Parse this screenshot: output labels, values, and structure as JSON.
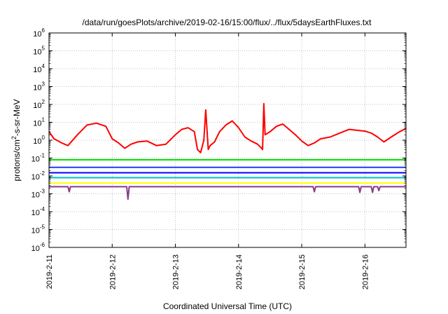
{
  "chart_data": {
    "type": "line",
    "title": "/data/run/goesPlots/archive/2019-02-16/15:00/flux/../flux/5daysEarthFluxes.txt",
    "xlabel": "Coordinated Universal Time (UTC)",
    "ylabel": "protons/cm²-s-sr-MeV",
    "ylabel_parts": [
      "protons/cm",
      "2",
      "-s-sr-MeV"
    ],
    "y_scale": "log",
    "ylim": [
      1e-06,
      1000000.0
    ],
    "xlim": [
      0,
      5.65
    ],
    "grid": true,
    "x_ticks": [
      {
        "x": 0,
        "label": "2019-2-11"
      },
      {
        "x": 1,
        "label": "2019-2-12"
      },
      {
        "x": 2,
        "label": "2019-2-13"
      },
      {
        "x": 3,
        "label": "2019-2-14"
      },
      {
        "x": 4,
        "label": "2019-2-15"
      },
      {
        "x": 5,
        "label": "2019-2-16"
      }
    ],
    "y_ticks": [
      {
        "exp": 6,
        "base": "10",
        "power": "6"
      },
      {
        "exp": 5,
        "base": "10",
        "power": "5"
      },
      {
        "exp": 4,
        "base": "10",
        "power": "4"
      },
      {
        "exp": 3,
        "base": "10",
        "power": "3"
      },
      {
        "exp": 2,
        "base": "10",
        "power": "2"
      },
      {
        "exp": 1,
        "base": "10",
        "power": "1"
      },
      {
        "exp": 0,
        "base": "10",
        "power": "0"
      },
      {
        "exp": -1,
        "base": "10",
        "power": "-1"
      },
      {
        "exp": -2,
        "base": "10",
        "power": "-2"
      },
      {
        "exp": -3,
        "base": "10",
        "power": "-3"
      },
      {
        "exp": -4,
        "base": "10",
        "power": "-4"
      },
      {
        "exp": -5,
        "base": "10",
        "power": "-5"
      },
      {
        "exp": -6,
        "base": "10",
        "power": "-6"
      }
    ],
    "series": [
      {
        "color": "#ffff00",
        "x": [
          0,
          1,
          2,
          3,
          4,
          5,
          5.65
        ],
        "y": [
          0.004,
          0.004,
          0.004,
          0.004,
          0.004,
          0.004,
          0.004
        ]
      },
      {
        "color": "#8b3a8b",
        "x": [
          0,
          0.3,
          0.32,
          0.34,
          1,
          1.23,
          1.25,
          1.27,
          2,
          3,
          4,
          4.18,
          4.2,
          4.22,
          4.7,
          4.9,
          4.92,
          4.94,
          5.1,
          5.12,
          5.14,
          5.2,
          5.22,
          5.24,
          5.65
        ],
        "y": [
          0.0025,
          0.0025,
          0.0013,
          0.0025,
          0.0025,
          0.0025,
          0.0005,
          0.0025,
          0.0025,
          0.0025,
          0.0025,
          0.0025,
          0.0013,
          0.0025,
          0.0025,
          0.0025,
          0.0012,
          0.0025,
          0.0025,
          0.0012,
          0.0025,
          0.0025,
          0.0015,
          0.0025,
          0.0025
        ]
      },
      {
        "color": "#00c0c0",
        "x": [
          0,
          1,
          2,
          3,
          4,
          5,
          5.65
        ],
        "y": [
          0.008,
          0.008,
          0.008,
          0.008,
          0.008,
          0.008,
          0.008
        ]
      },
      {
        "color": "#0000ff",
        "x": [
          0,
          1,
          2,
          3,
          4,
          5,
          5.65
        ],
        "y": [
          0.015,
          0.015,
          0.015,
          0.015,
          0.015,
          0.015,
          0.015
        ]
      },
      {
        "color": "#1e3cff",
        "x": [
          0,
          1,
          2,
          3,
          4,
          5,
          5.65
        ],
        "y": [
          0.03,
          0.03,
          0.03,
          0.03,
          0.03,
          0.03,
          0.03
        ]
      },
      {
        "color": "#00e000",
        "x": [
          0,
          1,
          2,
          3,
          4,
          5,
          5.65
        ],
        "y": [
          0.08,
          0.08,
          0.08,
          0.08,
          0.08,
          0.08,
          0.08
        ]
      },
      {
        "color": "#ff0000",
        "x": [
          0,
          0.08,
          0.2,
          0.3,
          0.45,
          0.6,
          0.75,
          0.9,
          1.0,
          1.1,
          1.2,
          1.3,
          1.4,
          1.55,
          1.7,
          1.85,
          2.0,
          2.1,
          2.2,
          2.3,
          2.35,
          2.4,
          2.45,
          2.48,
          2.52,
          2.55,
          2.62,
          2.7,
          2.8,
          2.9,
          3.0,
          3.1,
          3.2,
          3.3,
          3.35,
          3.38,
          3.4,
          3.42,
          3.5,
          3.6,
          3.7,
          3.8,
          3.9,
          4.0,
          4.1,
          4.2,
          4.3,
          4.45,
          4.6,
          4.75,
          4.9,
          5.0,
          5.1,
          5.2,
          5.3,
          5.45,
          5.55,
          5.65
        ],
        "y": [
          3,
          1.2,
          0.7,
          0.5,
          2,
          7,
          9,
          6,
          1.2,
          0.7,
          0.35,
          0.6,
          0.8,
          0.9,
          0.5,
          0.6,
          2,
          4,
          5,
          3,
          0.3,
          0.2,
          1,
          50,
          0.3,
          0.5,
          0.8,
          3,
          7,
          12,
          5,
          1.5,
          0.9,
          0.6,
          0.4,
          0.3,
          110,
          2,
          3,
          6,
          8,
          4,
          2,
          0.9,
          0.5,
          0.7,
          1.2,
          1.5,
          2.5,
          4,
          3.5,
          3.2,
          2.5,
          1.5,
          0.8,
          1.8,
          3,
          4.5
        ]
      }
    ]
  }
}
